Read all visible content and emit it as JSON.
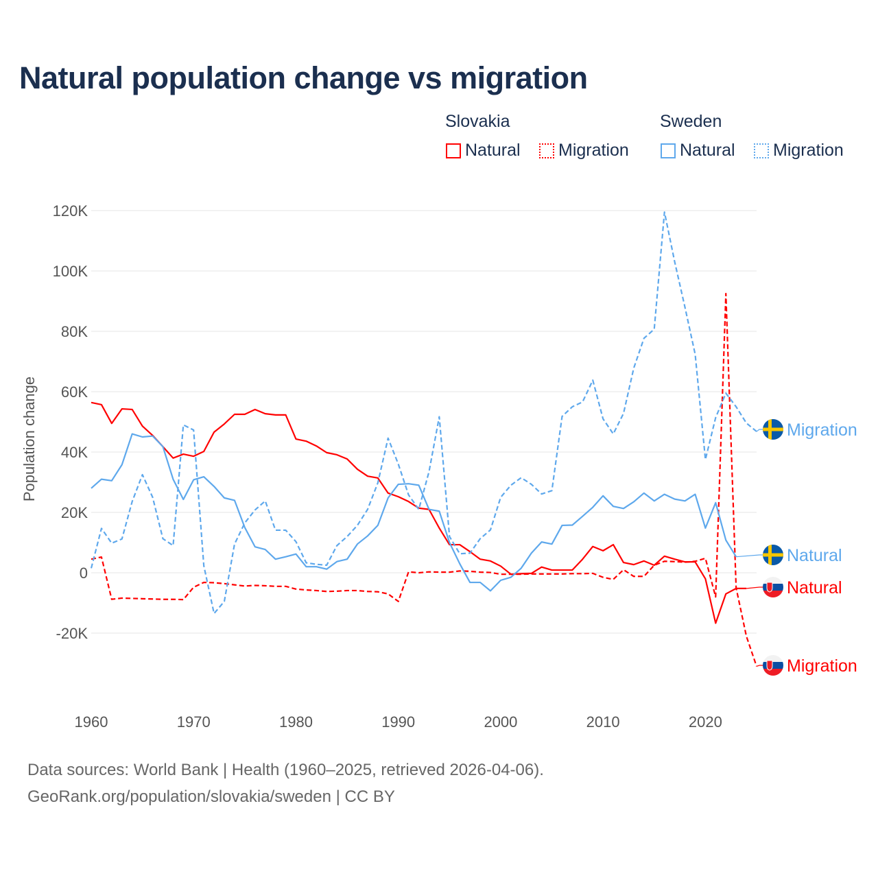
{
  "title": "Natural population change vs migration",
  "legend": {
    "groups": [
      {
        "name": "Slovakia",
        "color": "#ff0000",
        "items": [
          "Natural",
          "Migration"
        ]
      },
      {
        "name": "Sweden",
        "color": "#5ea8ec",
        "items": [
          "Natural",
          "Migration"
        ]
      }
    ]
  },
  "footer": {
    "line1": "Data sources: World Bank | Health (1960–2025, retrieved 2026-04-06).",
    "line2": "GeoRank.org/population/slovakia/sweden | CC BY"
  },
  "chart_data": {
    "type": "line",
    "title": "Natural population change vs migration",
    "xlabel": "",
    "ylabel": "Population change",
    "xlim": [
      1960,
      2025
    ],
    "ylim": [
      -30000,
      120000
    ],
    "xticks": [
      1960,
      1970,
      1980,
      1990,
      2000,
      2010,
      2020
    ],
    "xtick_labels": [
      "1960",
      "1970",
      "1980",
      "1990",
      "2000",
      "2010",
      "2020"
    ],
    "yticks": [
      -20000,
      0,
      20000,
      40000,
      60000,
      80000,
      100000,
      120000
    ],
    "ytick_labels": [
      "-20K",
      "0",
      "20K",
      "40K",
      "60K",
      "80K",
      "100K",
      "120K"
    ],
    "grid": true,
    "legend_position": "top-right",
    "start_year": 1960,
    "series": [
      {
        "name": "Slovakia Natural",
        "end_label": "Natural",
        "flag": "slovakia",
        "color": "#ff0000",
        "dash": false,
        "values": [
          56400,
          55700,
          49500,
          54300,
          54100,
          48600,
          45500,
          41800,
          38000,
          39300,
          38600,
          40200,
          46600,
          49300,
          52500,
          52500,
          54100,
          52700,
          52300,
          52300,
          44300,
          43600,
          42000,
          39800,
          39100,
          37700,
          34300,
          32000,
          31400,
          26400,
          25200,
          23600,
          21400,
          21000,
          14800,
          9300,
          9300,
          7000,
          4500,
          3900,
          2200,
          -500,
          -300,
          -200,
          1900,
          900,
          900,
          900,
          4500,
          8700,
          7300,
          9300,
          3400,
          2700,
          3900,
          2500,
          5500,
          4500,
          3600,
          3600,
          -2000,
          -16700,
          -7000,
          -5200,
          -5200
        ]
      },
      {
        "name": "Slovakia Migration",
        "end_label": "Migration",
        "flag": "slovakia",
        "color": "#ff0000",
        "dash": true,
        "values": [
          4500,
          5200,
          -8800,
          -8400,
          -8500,
          -8600,
          -8700,
          -8800,
          -8800,
          -8900,
          -4800,
          -3200,
          -3300,
          -3600,
          -4000,
          -4400,
          -4200,
          -4300,
          -4500,
          -4500,
          -5400,
          -5700,
          -5900,
          -6200,
          -6100,
          -5900,
          -5900,
          -6200,
          -6300,
          -7000,
          -9500,
          300,
          0,
          300,
          200,
          200,
          600,
          500,
          200,
          100,
          -500,
          -500,
          -500,
          -400,
          -400,
          -400,
          -400,
          -300,
          -300,
          -200,
          -1500,
          -2200,
          1000,
          -1200,
          -1200,
          2500,
          3800,
          3700,
          3500,
          3800,
          4800,
          -8000,
          92500,
          -5000,
          -21000,
          -31000
        ]
      },
      {
        "name": "Sweden Natural",
        "end_label": "Natural",
        "flag": "sweden",
        "color": "#5ea8ec",
        "dash": false,
        "values": [
          28000,
          31000,
          30500,
          35800,
          46000,
          45000,
          45300,
          41800,
          31000,
          24300,
          30800,
          31800,
          28600,
          24800,
          24000,
          15000,
          8600,
          7700,
          4500,
          5300,
          6200,
          2000,
          2000,
          1200,
          3700,
          4500,
          9500,
          12200,
          15700,
          24800,
          29300,
          29500,
          29000,
          21000,
          20400,
          10000,
          3000,
          -3200,
          -3200,
          -6000,
          -2500,
          -1500,
          1500,
          6500,
          10200,
          9500,
          15700,
          15800,
          18700,
          21700,
          25500,
          22000,
          21300,
          23500,
          26400,
          23800,
          26000,
          24400,
          23800,
          26000,
          14800,
          23200,
          10800,
          5300
        ]
      },
      {
        "name": "Sweden Migration",
        "end_label": "Migration",
        "flag": "sweden",
        "color": "#5ea8ec",
        "dash": true,
        "values": [
          1500,
          14700,
          9800,
          11200,
          23600,
          32500,
          25000,
          11300,
          9000,
          49000,
          47300,
          2300,
          -13500,
          -9500,
          9500,
          16500,
          20800,
          23800,
          14100,
          14100,
          10300,
          3300,
          2800,
          2500,
          9000,
          12000,
          15700,
          21000,
          29800,
          44600,
          36000,
          25800,
          21000,
          33500,
          51700,
          12000,
          6300,
          6500,
          11300,
          14200,
          25000,
          29000,
          31500,
          29300,
          26100,
          27200,
          51800,
          55000,
          56600,
          63800,
          51000,
          46000,
          52800,
          67800,
          77700,
          80700,
          119500,
          103000,
          88000,
          72400,
          37500,
          51400,
          59500,
          55000,
          49600,
          46800
        ]
      }
    ]
  }
}
